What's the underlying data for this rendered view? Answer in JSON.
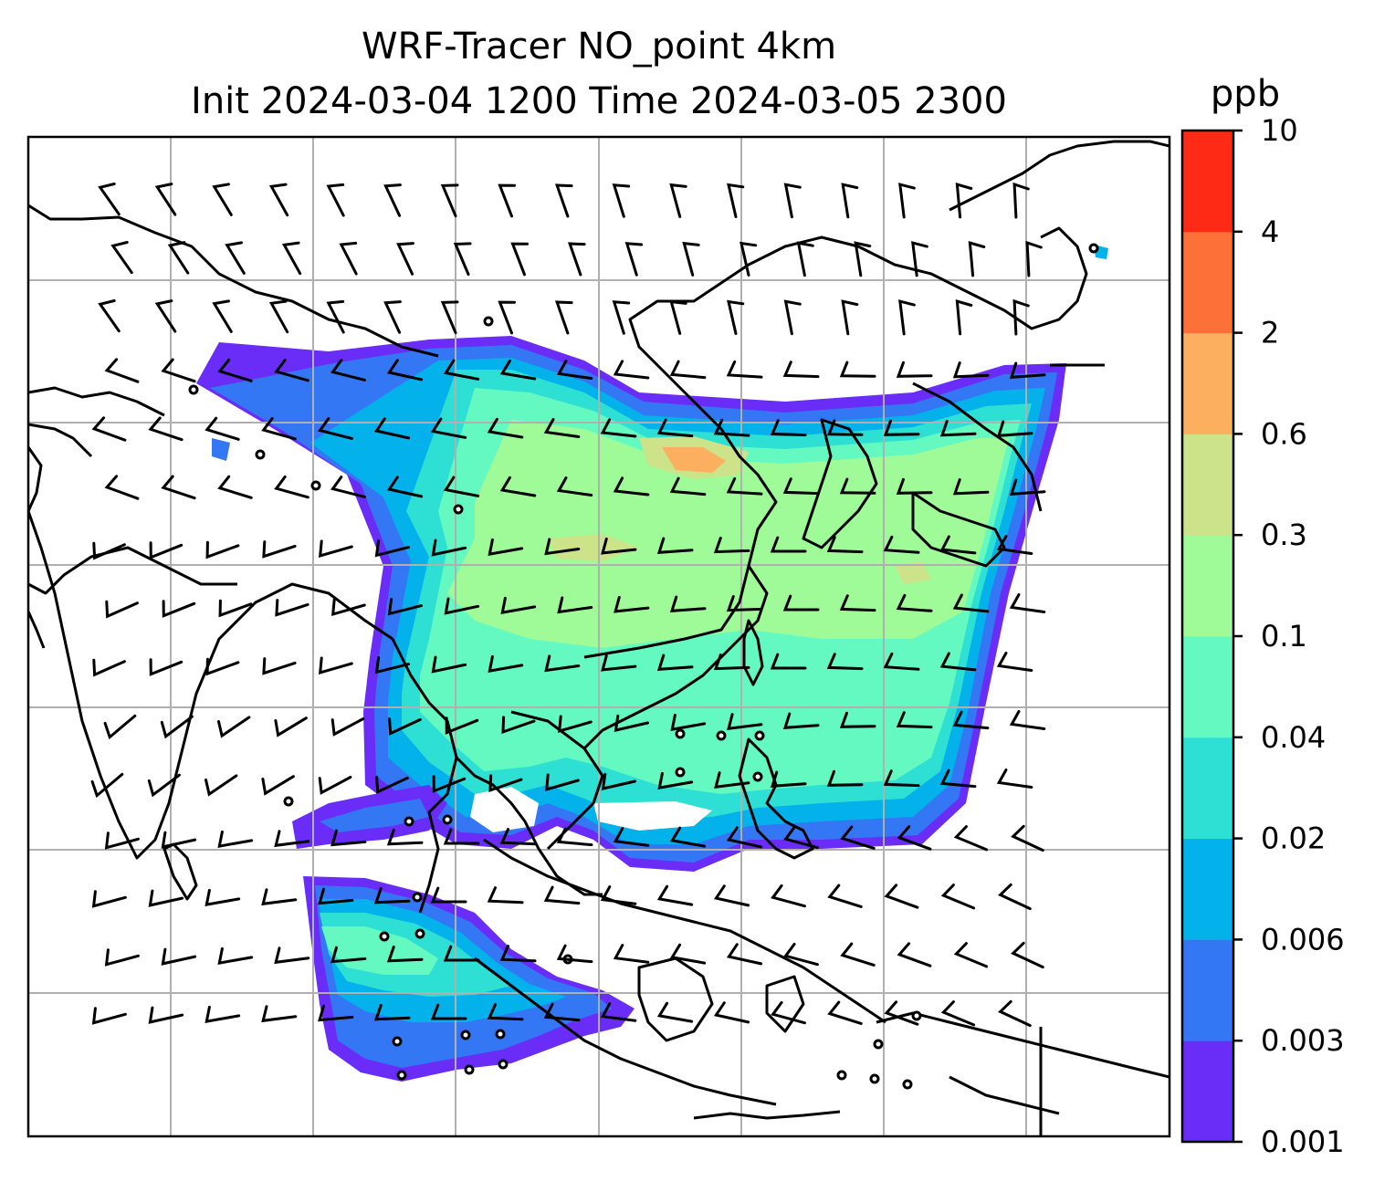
{
  "title": {
    "line1": "WRF-Tracer NO_point 4km",
    "line2": "Init 2024-03-04 1200 Time 2024-03-05 2300"
  },
  "colorbar": {
    "unit": "ppb",
    "ticks": [
      "0.001",
      "0.003",
      "0.006",
      "0.02",
      "0.04",
      "0.1",
      "0.3",
      "0.6",
      "2",
      "4",
      "10"
    ],
    "colors": [
      "#6a2cf7",
      "#3477f4",
      "#03b2ea",
      "#2ee0d4",
      "#63f9c1",
      "#9ffb98",
      "#cde38a",
      "#fcb05f",
      "#fd7038",
      "#ff2a16"
    ]
  },
  "map": {
    "projection_grid": "lat/lon gridlines",
    "plume_colors": {
      "edge": "#6a2cf7",
      "low": "#3477f4",
      "mid": "#03b2ea",
      "cyan": "#2ee0d4",
      "teal": "#63f9c1",
      "green": "#9ffb98",
      "olive": "#cde38a",
      "peak": "#fcb05f"
    },
    "coastline_color": "#000000",
    "grid_color": "#b0b0b0"
  }
}
